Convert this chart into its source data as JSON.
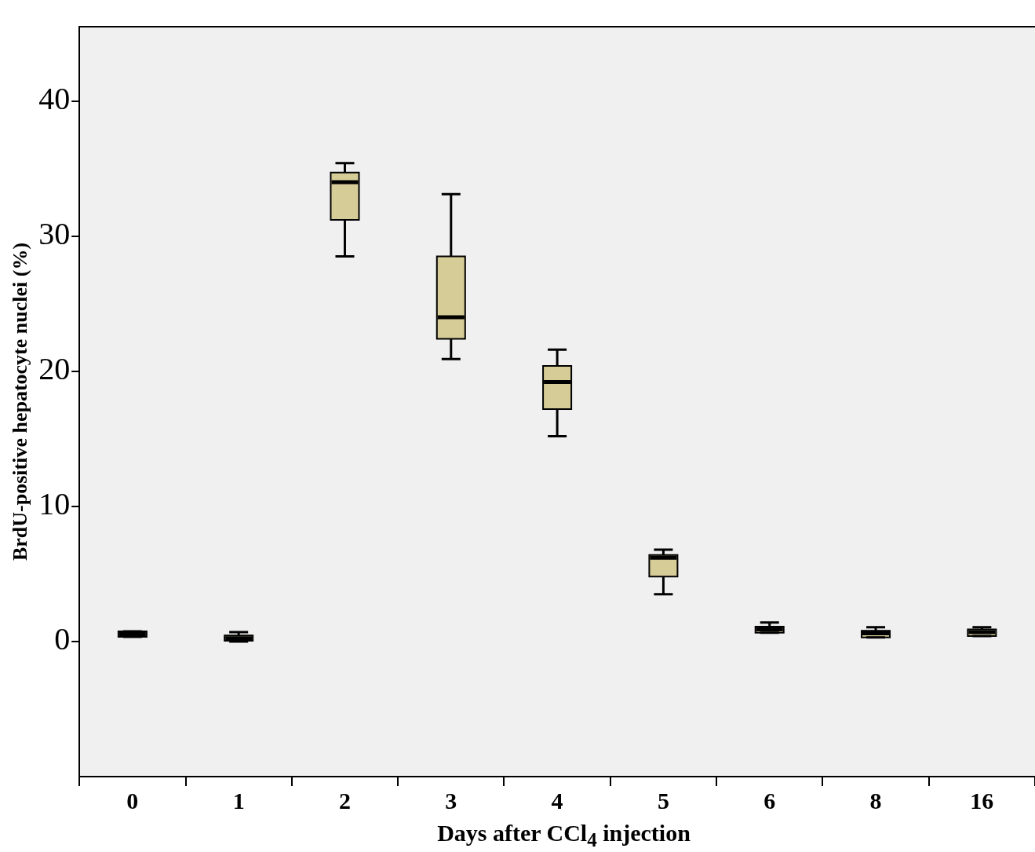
{
  "chart_data": {
    "type": "box",
    "xlabel": "Days after CCl$_{4}$ injection",
    "ylabel": "BrdU-positive hepatocyte nuclei (%)",
    "categories": [
      "0",
      "1",
      "2",
      "3",
      "4",
      "5",
      "6",
      "8",
      "16"
    ],
    "color": "#d6cc98",
    "boxes": [
      {
        "low": 0.35,
        "q1": 0.35,
        "median": 0.55,
        "q3": 0.75,
        "high": 0.75
      },
      {
        "low": 0,
        "q1": 0.05,
        "median": 0.25,
        "q3": 0.45,
        "high": 0.7
      },
      {
        "low": 28.5,
        "q1": 31.2,
        "median": 34.0,
        "q3": 34.7,
        "high": 35.4
      },
      {
        "low": 20.9,
        "q1": 22.4,
        "median": 24.0,
        "q3": 28.5,
        "high": 33.1
      },
      {
        "low": 15.2,
        "q1": 17.2,
        "median": 19.2,
        "q3": 20.4,
        "high": 21.6
      },
      {
        "low": 3.5,
        "q1": 4.8,
        "median": 6.2,
        "q3": 6.4,
        "high": 6.8
      },
      {
        "low": 0.65,
        "q1": 0.65,
        "median": 0.9,
        "q3": 1.1,
        "high": 1.4
      },
      {
        "low": 0.3,
        "q1": 0.3,
        "median": 0.6,
        "q3": 0.8,
        "high": 1.05
      },
      {
        "low": 0.4,
        "q1": 0.4,
        "median": 0.7,
        "q3": 0.9,
        "high": 1.05
      }
    ],
    "ylim": [
      -10,
      45.5
    ],
    "yticks": [
      0,
      10,
      20,
      30,
      40
    ],
    "grid": false,
    "legend": false
  }
}
